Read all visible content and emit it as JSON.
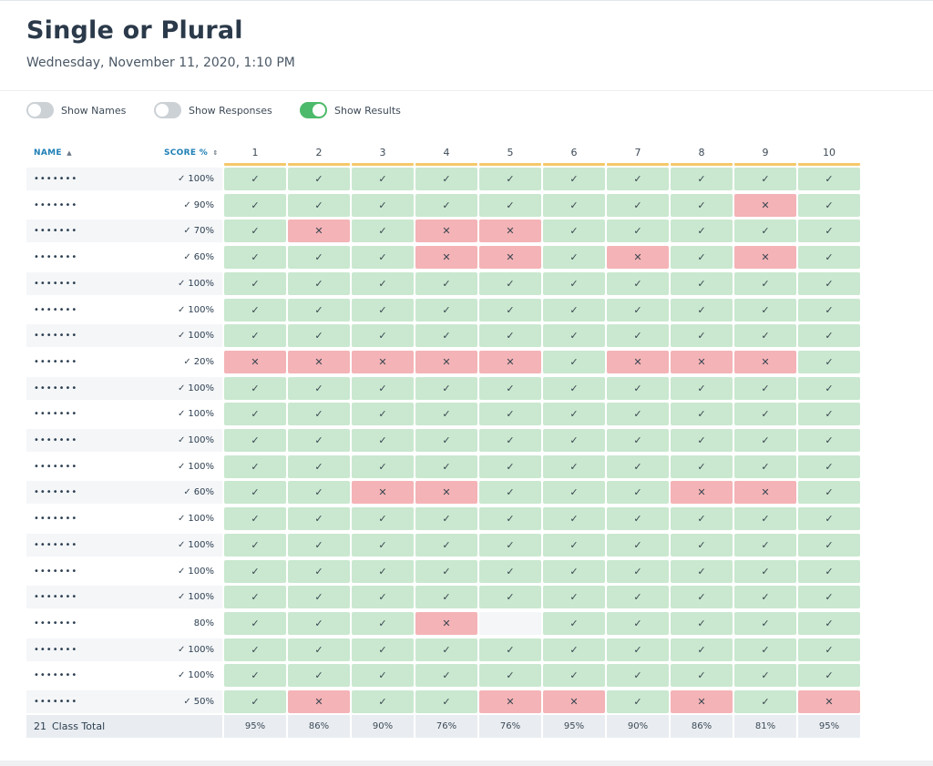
{
  "title": "Single or Plural",
  "subtitle": "Wednesday, November 11, 2020, 1:10 PM",
  "toggles": [
    {
      "label": "Show Names",
      "on": false
    },
    {
      "label": "Show Responses",
      "on": false
    },
    {
      "label": "Show Results",
      "on": true
    }
  ],
  "headers": {
    "name": "NAME",
    "score": "SCORE %",
    "name_sort_icon": "sort-up-icon",
    "score_sort_icon": "sort-both-icon",
    "questions": [
      "1",
      "2",
      "3",
      "4",
      "5",
      "6",
      "7",
      "8",
      "9",
      "10"
    ]
  },
  "symbols": {
    "correct": "✓",
    "wrong": "✕",
    "check": "✓",
    "name_sort": "▲",
    "score_sort": "⇕"
  },
  "colors": {
    "correct": "#c9e8cf",
    "wrong": "#f4b3b6",
    "accent": "#1f7fb5",
    "question_bar": "#f5c86a",
    "toggle_on": "#4cba6a"
  },
  "rows": [
    {
      "name": "•••••••",
      "score": "100%",
      "checked": true,
      "results": "cccccccccc"
    },
    {
      "name": "•••••••",
      "score": "90%",
      "checked": true,
      "results": "ccccccccwc"
    },
    {
      "name": "•••••••",
      "score": "70%",
      "checked": true,
      "results": "cwcwwccccc"
    },
    {
      "name": "•••••••",
      "score": "60%",
      "checked": true,
      "results": "cccwwcwcwc"
    },
    {
      "name": "•••••••",
      "score": "100%",
      "checked": true,
      "results": "cccccccccc"
    },
    {
      "name": "•••••••",
      "score": "100%",
      "checked": true,
      "results": "cccccccccc"
    },
    {
      "name": "•••••••",
      "score": "100%",
      "checked": true,
      "results": "cccccccccc"
    },
    {
      "name": "•••••••",
      "score": "20%",
      "checked": true,
      "results": "wwwwwcwwwc"
    },
    {
      "name": "•••••••",
      "score": "100%",
      "checked": true,
      "results": "cccccccccc"
    },
    {
      "name": "•••••••",
      "score": "100%",
      "checked": true,
      "results": "cccccccccc"
    },
    {
      "name": "•••••••",
      "score": "100%",
      "checked": true,
      "results": "cccccccccc"
    },
    {
      "name": "•••••••",
      "score": "100%",
      "checked": true,
      "results": "cccccccccc"
    },
    {
      "name": "•••••••",
      "score": "60%",
      "checked": true,
      "results": "ccwwcccwwc"
    },
    {
      "name": "•••••••",
      "score": "100%",
      "checked": true,
      "results": "cccccccccc"
    },
    {
      "name": "•••••••",
      "score": "100%",
      "checked": true,
      "results": "cccccccccc"
    },
    {
      "name": "•••••••",
      "score": "100%",
      "checked": true,
      "results": "cccccccccc"
    },
    {
      "name": "•••••••",
      "score": "100%",
      "checked": true,
      "results": "cccccccccc"
    },
    {
      "name": "•••••••",
      "score": "80%",
      "checked": false,
      "results": "cccwbccccc"
    },
    {
      "name": "•••••••",
      "score": "100%",
      "checked": true,
      "results": "cccccccccc"
    },
    {
      "name": "•••••••",
      "score": "100%",
      "checked": true,
      "results": "cccccccccc"
    },
    {
      "name": "•••••••",
      "score": "50%",
      "checked": true,
      "results": "cwccwwcwcw"
    }
  ],
  "total": {
    "count": "21",
    "label": "Class Total",
    "percents": [
      "95%",
      "86%",
      "90%",
      "76%",
      "76%",
      "95%",
      "90%",
      "86%",
      "81%",
      "95%"
    ]
  }
}
